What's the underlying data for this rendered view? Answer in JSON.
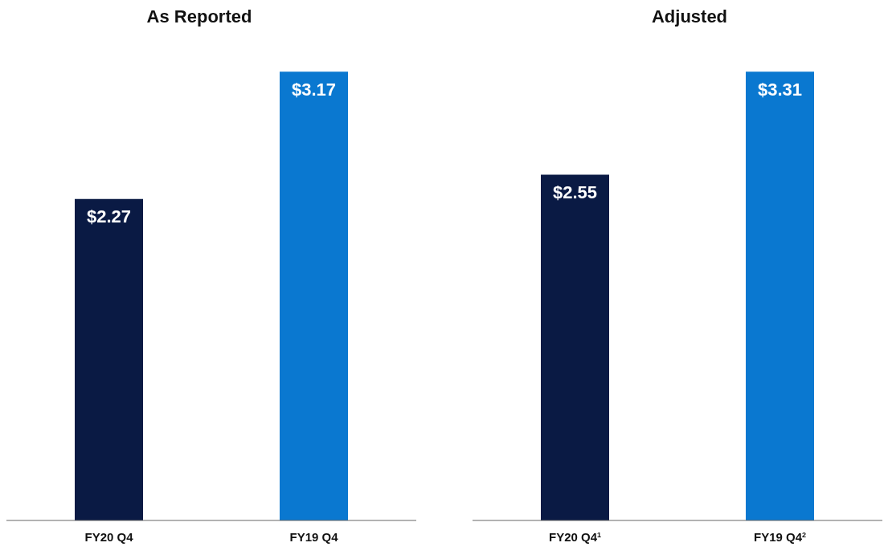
{
  "chart_data": [
    {
      "type": "bar",
      "title": "As Reported",
      "categories": [
        "FY20 Q4",
        "FY19 Q4"
      ],
      "values": [
        2.27,
        3.17
      ],
      "colors": [
        "#0a1a44",
        "#0a78d0"
      ],
      "data_labels": true,
      "value_labels": [
        "$2.27",
        "$3.17"
      ]
    },
    {
      "type": "bar",
      "title": "Adjusted",
      "categories": [
        "FY20 Q4$^{1}$",
        "FY19 Q4$^{2}$"
      ],
      "values": [
        2.55,
        3.31
      ],
      "colors": [
        "#0a1a44",
        "#0a78d0"
      ],
      "data_labels": true,
      "value_labels": [
        "$2.55",
        "$3.31"
      ]
    }
  ]
}
